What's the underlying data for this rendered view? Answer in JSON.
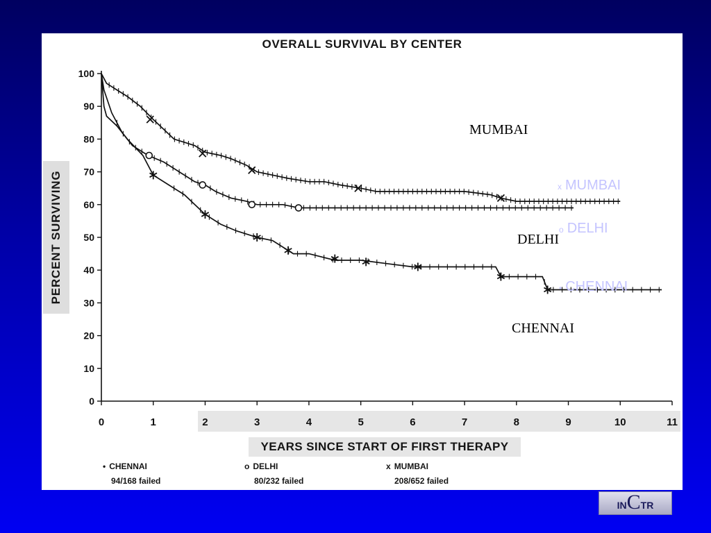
{
  "chart_data": {
    "type": "line",
    "title": "OVERALL SURVIVAL BY CENTER",
    "xlabel": "YEARS SINCE START OF FIRST THERAPY",
    "ylabel": "PERCENT SURVIVING",
    "xlim": [
      0,
      11
    ],
    "ylim": [
      0,
      100
    ],
    "x_ticks": [
      0,
      1,
      2,
      3,
      4,
      5,
      6,
      7,
      8,
      9,
      10,
      11
    ],
    "y_ticks": [
      0,
      10,
      20,
      30,
      40,
      50,
      60,
      70,
      80,
      90,
      100
    ],
    "grid": false,
    "series": [
      {
        "name": "MUMBAI",
        "marker": "cross",
        "x": [
          0,
          0.1,
          0.3,
          0.5,
          0.75,
          1.0,
          1.2,
          1.4,
          1.6,
          1.8,
          2.0,
          2.3,
          2.5,
          2.8,
          3.0,
          3.3,
          3.6,
          4.0,
          4.3,
          4.6,
          5.0,
          5.3,
          5.6,
          6.0,
          7.0,
          7.5,
          7.7,
          8.0,
          9.0,
          10.0
        ],
        "y": [
          100,
          97,
          95,
          93,
          90,
          86,
          83,
          80,
          79,
          78,
          76,
          75,
          74,
          72,
          70,
          69,
          68,
          67,
          67,
          66,
          65,
          64,
          64,
          64,
          64,
          63,
          62,
          61,
          61,
          61
        ],
        "marker_points": [
          [
            0.94,
            86
          ],
          [
            1.95,
            75.6
          ],
          [
            2.9,
            70.5
          ],
          [
            4.95,
            65
          ],
          [
            7.7,
            62
          ]
        ]
      },
      {
        "name": "DELHI",
        "marker": "circle",
        "x": [
          0,
          0.05,
          0.2,
          0.4,
          0.6,
          0.9,
          1.2,
          1.5,
          1.8,
          2.0,
          2.2,
          2.5,
          2.8,
          3.0,
          3.5,
          3.8,
          4.0,
          5.0,
          6.0,
          7.0,
          8.0,
          9.1
        ],
        "y": [
          100,
          95,
          88,
          82,
          78,
          75,
          73,
          70,
          67,
          66,
          64,
          62,
          61,
          60,
          60,
          59,
          59,
          59,
          59,
          59,
          59,
          59
        ],
        "marker_points": [
          [
            0.92,
            75
          ],
          [
            1.95,
            66
          ],
          [
            2.9,
            60
          ],
          [
            3.8,
            59
          ]
        ]
      },
      {
        "name": "CHENNAI",
        "marker": "asterisk",
        "x": [
          0,
          0.05,
          0.1,
          0.3,
          0.5,
          0.8,
          1.0,
          1.3,
          1.6,
          2.0,
          2.3,
          2.6,
          3.0,
          3.3,
          3.6,
          3.7,
          4.0,
          4.5,
          5.0,
          5.5,
          6.0,
          6.5,
          7.0,
          7.6,
          7.7,
          8.0,
          8.5,
          8.6,
          9.0,
          10.0,
          10.8
        ],
        "y": [
          100,
          90,
          87,
          84,
          80,
          75,
          69,
          66,
          63,
          57,
          54,
          52,
          50,
          49,
          46,
          45,
          45,
          43,
          43,
          42,
          41,
          41,
          41,
          41,
          38,
          38,
          38,
          34,
          34,
          34,
          34
        ],
        "marker_points": [
          [
            1.0,
            69
          ],
          [
            2.0,
            57
          ],
          [
            3.0,
            50
          ],
          [
            3.6,
            46
          ],
          [
            4.5,
            43.5
          ],
          [
            5.1,
            42.5
          ],
          [
            6.1,
            41
          ],
          [
            7.7,
            38
          ],
          [
            8.6,
            34
          ]
        ]
      }
    ]
  },
  "legend": [
    {
      "symbol": "•",
      "name": "CHENNAI",
      "detail": "94/168 failed"
    },
    {
      "symbol": "o",
      "name": "DELHI",
      "detail": "80/232 failed"
    },
    {
      "symbol": "x",
      "name": "MUMBAI",
      "detail": "208/652 failed"
    }
  ],
  "annotations": {
    "mumbai": "MUMBAI",
    "delhi": "DELHI",
    "chennai": "CHENNAI"
  },
  "overlay_labels": [
    {
      "symbol": "x",
      "label": "MUMBAI"
    },
    {
      "symbol": "o",
      "label": "DELHI"
    },
    {
      "symbol": "•",
      "label": "CHENNAI"
    }
  ],
  "logo": {
    "part1": "IN",
    "part2": "C",
    "part3": "TR"
  },
  "colors": {
    "background_top": "#000060",
    "background_bottom": "#0000f2",
    "panel": "#ffffff",
    "curve": "#111111",
    "pale_label": "#c4c4ff"
  }
}
